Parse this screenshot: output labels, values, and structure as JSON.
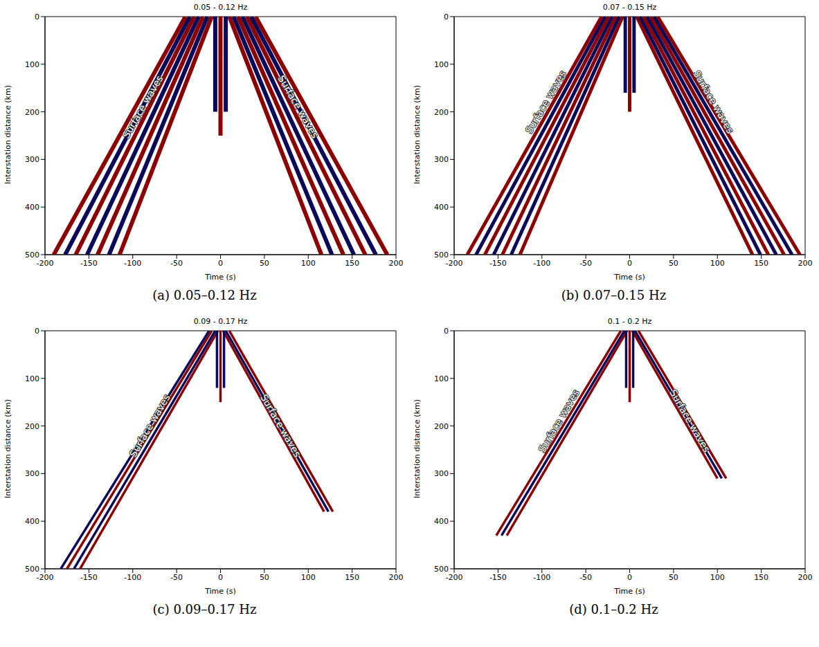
{
  "chart_data": [
    {
      "type": "line",
      "title": "0.05 - 0.12 Hz",
      "caption": "(a) 0.05–0.12 Hz",
      "x_label": "Time (s)",
      "y_label": "Interstation distance (km)",
      "xlim": [
        -200,
        200
      ],
      "xticks": [
        -200,
        -150,
        -100,
        -50,
        0,
        50,
        100,
        150,
        200
      ],
      "ylim": [
        0,
        500
      ],
      "yticks": [
        0,
        100,
        200,
        300,
        400,
        500
      ],
      "annotations": [
        {
          "text": "Surface waves",
          "x": -88,
          "y": 190
        },
        {
          "text": "Surface waves",
          "x": 88,
          "y": 190
        }
      ],
      "series": [
        {
          "color": "#8b0000",
          "x": [
            -10,
            -115
          ],
          "values": [
            0,
            500
          ]
        },
        {
          "color": "#0a0a5a",
          "x": [
            -15,
            -127
          ],
          "values": [
            0,
            500
          ]
        },
        {
          "color": "#8b0000",
          "x": [
            -20,
            -140
          ],
          "values": [
            0,
            500
          ]
        },
        {
          "color": "#0a0a5a",
          "x": [
            -25,
            -152
          ],
          "values": [
            0,
            500
          ]
        },
        {
          "color": "#8b0000",
          "x": [
            -30,
            -165
          ],
          "values": [
            0,
            500
          ]
        },
        {
          "color": "#0a0a5a",
          "x": [
            -35,
            -177
          ],
          "values": [
            0,
            500
          ]
        },
        {
          "color": "#8b0000",
          "x": [
            -40,
            -190
          ],
          "values": [
            0,
            500
          ]
        },
        {
          "color": "#8b0000",
          "x": [
            10,
            115
          ],
          "values": [
            0,
            500
          ]
        },
        {
          "color": "#0a0a5a",
          "x": [
            15,
            127
          ],
          "values": [
            0,
            500
          ]
        },
        {
          "color": "#8b0000",
          "x": [
            20,
            140
          ],
          "values": [
            0,
            500
          ]
        },
        {
          "color": "#0a0a5a",
          "x": [
            25,
            152
          ],
          "values": [
            0,
            500
          ]
        },
        {
          "color": "#8b0000",
          "x": [
            30,
            165
          ],
          "values": [
            0,
            500
          ]
        },
        {
          "color": "#0a0a5a",
          "x": [
            35,
            177
          ],
          "values": [
            0,
            500
          ]
        },
        {
          "color": "#8b0000",
          "x": [
            40,
            190
          ],
          "values": [
            0,
            500
          ]
        },
        {
          "color": "#8b0000",
          "x": [
            0,
            0
          ],
          "values": [
            0,
            250
          ]
        },
        {
          "color": "#0a0a5a",
          "x": [
            -6,
            -6
          ],
          "values": [
            0,
            200
          ]
        },
        {
          "color": "#0a0a5a",
          "x": [
            6,
            6
          ],
          "values": [
            0,
            200
          ]
        }
      ]
    },
    {
      "type": "line",
      "title": "0.07 - 0.15 Hz",
      "caption": "(b) 0.07–0.15 Hz",
      "x_label": "Time (s)",
      "y_label": "Interstation distance (km)",
      "xlim": [
        -200,
        200
      ],
      "xticks": [
        -200,
        -150,
        -100,
        -50,
        0,
        50,
        100,
        150,
        200
      ],
      "ylim": [
        0,
        500
      ],
      "yticks": [
        0,
        100,
        200,
        300,
        400,
        500
      ],
      "annotations": [
        {
          "text": "Surface waves",
          "x": -95,
          "y": 180
        },
        {
          "text": "Surface waves",
          "x": 95,
          "y": 180
        }
      ],
      "series": [
        {
          "color": "#8b0000",
          "x": [
            -8,
            -125
          ],
          "values": [
            0,
            500
          ]
        },
        {
          "color": "#0a0a5a",
          "x": [
            -12,
            -135
          ],
          "values": [
            0,
            500
          ]
        },
        {
          "color": "#8b0000",
          "x": [
            -16,
            -145
          ],
          "values": [
            0,
            500
          ]
        },
        {
          "color": "#0a0a5a",
          "x": [
            -20,
            -155
          ],
          "values": [
            0,
            500
          ]
        },
        {
          "color": "#8b0000",
          "x": [
            -24,
            -165
          ],
          "values": [
            0,
            500
          ]
        },
        {
          "color": "#0a0a5a",
          "x": [
            -28,
            -175
          ],
          "values": [
            0,
            500
          ]
        },
        {
          "color": "#8b0000",
          "x": [
            -32,
            -185
          ],
          "values": [
            0,
            500
          ]
        },
        {
          "color": "#8b0000",
          "x": [
            8,
            140
          ],
          "values": [
            0,
            500
          ]
        },
        {
          "color": "#0a0a5a",
          "x": [
            12,
            149
          ],
          "values": [
            0,
            500
          ]
        },
        {
          "color": "#8b0000",
          "x": [
            16,
            158
          ],
          "values": [
            0,
            500
          ]
        },
        {
          "color": "#0a0a5a",
          "x": [
            20,
            167
          ],
          "values": [
            0,
            500
          ]
        },
        {
          "color": "#8b0000",
          "x": [
            24,
            176
          ],
          "values": [
            0,
            500
          ]
        },
        {
          "color": "#0a0a5a",
          "x": [
            28,
            185
          ],
          "values": [
            0,
            500
          ]
        },
        {
          "color": "#8b0000",
          "x": [
            32,
            194
          ],
          "values": [
            0,
            500
          ]
        },
        {
          "color": "#8b0000",
          "x": [
            0,
            0
          ],
          "values": [
            0,
            200
          ]
        },
        {
          "color": "#0a0a5a",
          "x": [
            -5,
            -5
          ],
          "values": [
            0,
            160
          ]
        },
        {
          "color": "#0a0a5a",
          "x": [
            5,
            5
          ],
          "values": [
            0,
            160
          ]
        }
      ]
    },
    {
      "type": "line",
      "title": "0.09 - 0.17 Hz",
      "caption": "(c) 0.09–0.17 Hz",
      "x_label": "Time (s)",
      "y_label": "Interstation distance (km)",
      "xlim": [
        -200,
        200
      ],
      "xticks": [
        -200,
        -150,
        -100,
        -50,
        0,
        50,
        100,
        150,
        200
      ],
      "ylim": [
        0,
        500
      ],
      "yticks": [
        0,
        100,
        200,
        300,
        400,
        500
      ],
      "annotations": [
        {
          "text": "Surface waves",
          "x": -80,
          "y": 200
        },
        {
          "text": "Surface waves",
          "x": 68,
          "y": 200
        }
      ],
      "series": [
        {
          "color": "#8b0000",
          "x": [
            -3,
            -160
          ],
          "values": [
            0,
            500
          ]
        },
        {
          "color": "#0a0a5a",
          "x": [
            -6,
            -167
          ],
          "values": [
            0,
            500
          ]
        },
        {
          "color": "#8b0000",
          "x": [
            -10,
            -175
          ],
          "values": [
            0,
            500
          ]
        },
        {
          "color": "#0a0a5a",
          "x": [
            -13,
            -182
          ],
          "values": [
            0,
            500
          ]
        },
        {
          "color": "#8b0000",
          "x": [
            3,
            118
          ],
          "values": [
            0,
            380
          ]
        },
        {
          "color": "#0a0a5a",
          "x": [
            6,
            123
          ],
          "values": [
            0,
            380
          ]
        },
        {
          "color": "#8b0000",
          "x": [
            10,
            128
          ],
          "values": [
            0,
            380
          ]
        },
        {
          "color": "#8b0000",
          "x": [
            0,
            0
          ],
          "values": [
            0,
            150
          ]
        },
        {
          "color": "#0a0a5a",
          "x": [
            -4,
            -4
          ],
          "values": [
            0,
            120
          ]
        },
        {
          "color": "#0a0a5a",
          "x": [
            4,
            4
          ],
          "values": [
            0,
            120
          ]
        }
      ]
    },
    {
      "type": "line",
      "title": "0.1 - 0.2 Hz",
      "caption": "(d) 0.1–0.2 Hz",
      "x_label": "Time (s)",
      "y_label": "Interstation distance (km)",
      "xlim": [
        -200,
        200
      ],
      "xticks": [
        -200,
        -150,
        -100,
        -50,
        0,
        50,
        100,
        150,
        200
      ],
      "ylim": [
        0,
        500
      ],
      "yticks": [
        0,
        100,
        200,
        300,
        400,
        500
      ],
      "annotations": [
        {
          "text": "Surface waves",
          "x": -80,
          "y": 190
        },
        {
          "text": "Surface waves",
          "x": 68,
          "y": 190
        }
      ],
      "series": [
        {
          "color": "#8b0000",
          "x": [
            -3,
            -140
          ],
          "values": [
            0,
            430
          ]
        },
        {
          "color": "#0a0a5a",
          "x": [
            -6,
            -146
          ],
          "values": [
            0,
            430
          ]
        },
        {
          "color": "#8b0000",
          "x": [
            -10,
            -152
          ],
          "values": [
            0,
            430
          ]
        },
        {
          "color": "#8b0000",
          "x": [
            3,
            100
          ],
          "values": [
            0,
            310
          ]
        },
        {
          "color": "#0a0a5a",
          "x": [
            6,
            105
          ],
          "values": [
            0,
            310
          ]
        },
        {
          "color": "#8b0000",
          "x": [
            10,
            110
          ],
          "values": [
            0,
            310
          ]
        },
        {
          "color": "#8b0000",
          "x": [
            0,
            0
          ],
          "values": [
            0,
            150
          ]
        },
        {
          "color": "#0a0a5a",
          "x": [
            -4,
            -4
          ],
          "values": [
            0,
            120
          ]
        },
        {
          "color": "#0a0a5a",
          "x": [
            4,
            4
          ],
          "values": [
            0,
            120
          ]
        }
      ]
    }
  ]
}
